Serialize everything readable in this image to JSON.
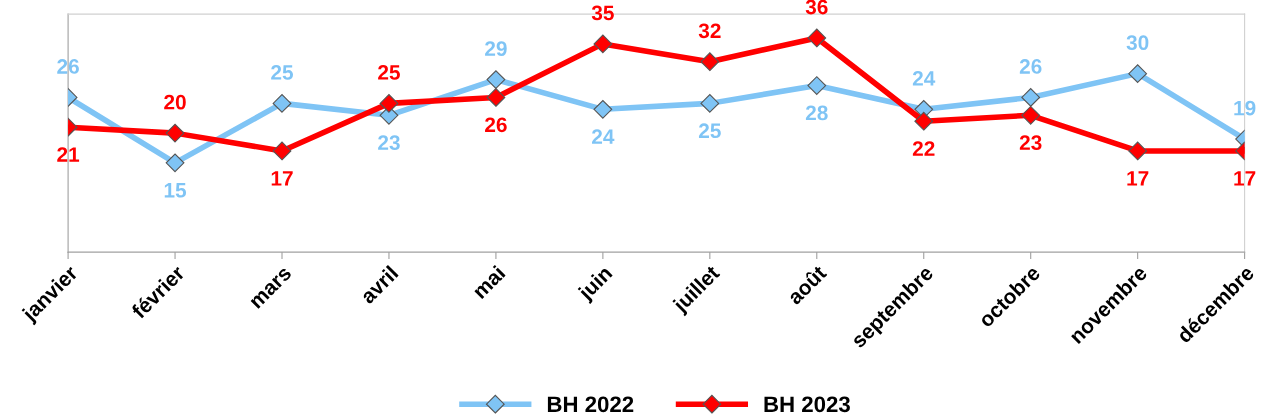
{
  "chart_data": {
    "type": "line",
    "categories": [
      "janvier",
      "février",
      "mars",
      "avril",
      "mai",
      "juin",
      "juillet",
      "août",
      "septembre",
      "octobre",
      "novembre",
      "décembre"
    ],
    "series": [
      {
        "name": "BH 2022",
        "color": "#7fc4f5",
        "values": [
          26,
          15,
          25,
          23,
          29,
          24,
          25,
          28,
          24,
          26,
          30,
          19
        ]
      },
      {
        "name": "BH 2023",
        "color": "#ff0000",
        "values": [
          21,
          20,
          17,
          25,
          26,
          35,
          32,
          36,
          22,
          23,
          17,
          17
        ]
      }
    ],
    "ylim": [
      0,
      40
    ],
    "tick_labels": "x",
    "data_labels": true,
    "marker": "diamond",
    "line_style": "solid",
    "grid": false,
    "legend": "bottom"
  }
}
